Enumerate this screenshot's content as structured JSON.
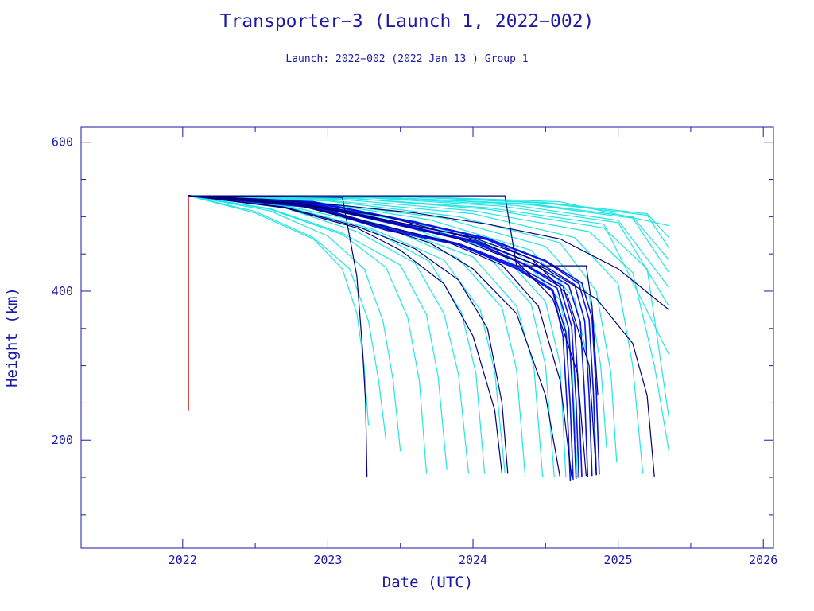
{
  "chart_data": {
    "type": "line",
    "title": "Transporter−3 (Launch 1, 2022−002)",
    "subtitle": "Launch: 2022−002  (2022 Jan 13 )  Group 1",
    "xlabel": "Date (UTC)",
    "ylabel": "Height (km)",
    "xlim": [
      2021.3,
      2026.07
    ],
    "ylim": [
      55,
      620
    ],
    "x_ticks": [
      2022,
      2023,
      2024,
      2025,
      2026
    ],
    "y_ticks": [
      200,
      400,
      600
    ],
    "grid": false,
    "colors": {
      "cyan": "#22e5e5",
      "blue": "#0a14e6",
      "navy": "#00007a",
      "red": "#d40000",
      "axis": "#1a1aa6"
    },
    "series": [
      {
        "color": "navy",
        "x": [
          2022.04,
          2024.22,
          2024.3,
          2024.78,
          2024.82,
          2024.86
        ],
        "y": [
          528,
          528,
          434,
          434,
          380,
          260
        ]
      },
      {
        "color": "navy",
        "x": [
          2022.04,
          2023.1,
          2023.2,
          2023.24,
          2023.26,
          2023.27
        ],
        "y": [
          528,
          526,
          420,
          320,
          250,
          150
        ]
      },
      {
        "color": "red",
        "x": [
          2022.04,
          2022.04
        ],
        "y": [
          240,
          528
        ]
      },
      {
        "color": "navy",
        "x": [
          2022.04,
          2022.6,
          2023.1,
          2023.6,
          2024.1,
          2024.6,
          2025.0,
          2025.35
        ],
        "y": [
          528,
          523,
          515,
          505,
          490,
          470,
          430,
          375
        ]
      },
      {
        "color": "navy",
        "x": [
          2022.04,
          2022.8,
          2023.4,
          2024.0,
          2024.5,
          2024.85,
          2025.1,
          2025.2,
          2025.25
        ],
        "y": [
          528,
          518,
          500,
          470,
          430,
          390,
          330,
          260,
          150
        ]
      },
      {
        "color": "navy",
        "x": [
          2022.04,
          2022.7,
          2023.2,
          2023.5,
          2023.8,
          2024.0,
          2024.15,
          2024.2
        ],
        "y": [
          528,
          512,
          485,
          455,
          410,
          340,
          240,
          155
        ]
      },
      {
        "color": "navy",
        "x": [
          2022.04,
          2022.7,
          2023.2,
          2023.6,
          2023.9,
          2024.1,
          2024.2,
          2024.24
        ],
        "y": [
          528,
          513,
          487,
          457,
          415,
          350,
          250,
          155
        ]
      },
      {
        "color": "navy",
        "x": [
          2022.04,
          2022.8,
          2023.3,
          2023.7,
          2024.0,
          2024.3,
          2024.5,
          2024.6
        ],
        "y": [
          528,
          515,
          490,
          465,
          430,
          370,
          260,
          150
        ]
      },
      {
        "color": "navy",
        "x": [
          2022.04,
          2022.8,
          2023.3,
          2023.8,
          2024.2,
          2024.45,
          2024.6,
          2024.68
        ],
        "y": [
          528,
          516,
          492,
          468,
          435,
          380,
          280,
          150
        ]
      },
      {
        "color": "navy",
        "x": [
          2022.04,
          2022.8,
          2023.4,
          2023.9,
          2024.3,
          2024.55,
          2024.72,
          2024.78
        ],
        "y": [
          528,
          517,
          494,
          470,
          440,
          390,
          290,
          152
        ]
      },
      {
        "color": "navy",
        "x": [
          2022.04,
          2022.8,
          2023.4,
          2024.0,
          2024.4,
          2024.65,
          2024.8,
          2024.85
        ],
        "y": [
          528,
          518,
          496,
          472,
          444,
          395,
          300,
          153
        ]
      },
      {
        "color": "blue",
        "x": [
          2022.04,
          2022.9,
          2023.4,
          2023.9,
          2024.3,
          2024.55,
          2024.62,
          2024.65,
          2024.67
        ],
        "y": [
          528,
          512,
          482,
          462,
          430,
          400,
          340,
          240,
          145
        ]
      },
      {
        "color": "blue",
        "x": [
          2022.04,
          2022.9,
          2023.4,
          2023.9,
          2024.3,
          2024.55,
          2024.64,
          2024.67,
          2024.69
        ],
        "y": [
          528,
          513,
          484,
          463,
          432,
          402,
          345,
          245,
          147
        ]
      },
      {
        "color": "blue",
        "x": [
          2022.04,
          2022.9,
          2023.4,
          2023.9,
          2024.3,
          2024.58,
          2024.66,
          2024.69,
          2024.71
        ],
        "y": [
          528,
          514,
          486,
          464,
          434,
          404,
          350,
          250,
          148
        ]
      },
      {
        "color": "blue",
        "x": [
          2022.04,
          2022.9,
          2023.5,
          2024.0,
          2024.35,
          2024.6,
          2024.68,
          2024.71,
          2024.73
        ],
        "y": [
          528,
          515,
          488,
          466,
          436,
          406,
          352,
          252,
          149
        ]
      },
      {
        "color": "blue",
        "x": [
          2022.04,
          2022.9,
          2023.5,
          2024.0,
          2024.35,
          2024.62,
          2024.7,
          2024.73,
          2024.75
        ],
        "y": [
          528,
          516,
          489,
          467,
          437,
          407,
          355,
          255,
          150
        ]
      },
      {
        "color": "blue",
        "x": [
          2022.04,
          2022.9,
          2023.5,
          2024.0,
          2024.4,
          2024.66,
          2024.74,
          2024.77,
          2024.79
        ],
        "y": [
          528,
          517,
          490,
          468,
          438,
          408,
          358,
          258,
          151
        ]
      },
      {
        "color": "blue",
        "x": [
          2022.04,
          2022.9,
          2023.5,
          2024.1,
          2024.45,
          2024.7,
          2024.77,
          2024.8,
          2024.82
        ],
        "y": [
          528,
          518,
          491,
          469,
          439,
          409,
          360,
          260,
          152
        ]
      },
      {
        "color": "blue",
        "x": [
          2022.04,
          2022.9,
          2023.6,
          2024.1,
          2024.5,
          2024.73,
          2024.8,
          2024.83,
          2024.85
        ],
        "y": [
          528,
          519,
          492,
          470,
          440,
          410,
          362,
          262,
          153
        ]
      },
      {
        "color": "blue",
        "x": [
          2022.04,
          2022.9,
          2023.6,
          2024.1,
          2024.5,
          2024.75,
          2024.82,
          2024.85,
          2024.87
        ],
        "y": [
          528,
          520,
          493,
          471,
          441,
          411,
          364,
          264,
          154
        ]
      },
      {
        "color": "cyan",
        "x": [
          2022.04,
          2022.5,
          2022.9,
          2023.1,
          2023.2,
          2023.25,
          2023.28
        ],
        "y": [
          528,
          505,
          470,
          430,
          370,
          300,
          220
        ]
      },
      {
        "color": "cyan",
        "x": [
          2022.04,
          2022.5,
          2022.9,
          2023.15,
          2023.28,
          2023.35,
          2023.4
        ],
        "y": [
          528,
          507,
          472,
          430,
          360,
          280,
          200
        ]
      },
      {
        "color": "cyan",
        "x": [
          2022.04,
          2022.6,
          2023.0,
          2023.25,
          2023.38,
          2023.45,
          2023.5
        ],
        "y": [
          528,
          508,
          474,
          430,
          360,
          280,
          185
        ]
      },
      {
        "color": "cyan",
        "x": [
          2022.04,
          2022.6,
          2023.1,
          2023.4,
          2023.55,
          2023.63,
          2023.68
        ],
        "y": [
          528,
          510,
          476,
          432,
          365,
          280,
          155
        ]
      },
      {
        "color": "cyan",
        "x": [
          2022.04,
          2022.6,
          2023.1,
          2023.5,
          2023.68,
          2023.76,
          2023.82
        ],
        "y": [
          528,
          511,
          478,
          435,
          368,
          285,
          160
        ]
      },
      {
        "color": "cyan",
        "x": [
          2022.04,
          2022.7,
          2023.2,
          2023.6,
          2023.8,
          2023.9,
          2023.97
        ],
        "y": [
          528,
          512,
          480,
          438,
          370,
          288,
          155
        ]
      },
      {
        "color": "cyan",
        "x": [
          2022.04,
          2022.7,
          2023.3,
          2023.7,
          2023.92,
          2024.02,
          2024.08
        ],
        "y": [
          528,
          513,
          482,
          440,
          372,
          290,
          155
        ]
      },
      {
        "color": "cyan",
        "x": [
          2022.04,
          2022.7,
          2023.3,
          2023.8,
          2024.05,
          2024.15,
          2024.22
        ],
        "y": [
          528,
          514,
          484,
          442,
          375,
          292,
          156
        ]
      },
      {
        "color": "cyan",
        "x": [
          2022.04,
          2022.7,
          2023.4,
          2023.9,
          2024.2,
          2024.3,
          2024.36
        ],
        "y": [
          528,
          515,
          486,
          444,
          378,
          295,
          150
        ]
      },
      {
        "color": "cyan",
        "x": [
          2022.04,
          2022.8,
          2023.4,
          2024.0,
          2024.3,
          2024.42,
          2024.48
        ],
        "y": [
          528,
          516,
          488,
          446,
          380,
          298,
          150
        ]
      },
      {
        "color": "cyan",
        "x": [
          2022.04,
          2022.8,
          2023.5,
          2024.1,
          2024.4,
          2024.5,
          2024.56
        ],
        "y": [
          528,
          517,
          490,
          448,
          383,
          300,
          150
        ]
      },
      {
        "color": "cyan",
        "x": [
          2022.04,
          2022.8,
          2023.6,
          2024.2,
          2024.5,
          2024.6,
          2024.64
        ],
        "y": [
          528,
          518,
          492,
          450,
          386,
          302,
          150
        ]
      },
      {
        "color": "cyan",
        "x": [
          2022.04,
          2022.8,
          2023.6,
          2024.3,
          2024.6,
          2024.68,
          2024.72
        ],
        "y": [
          528,
          519,
          494,
          452,
          388,
          305,
          150
        ]
      },
      {
        "color": "cyan",
        "x": [
          2022.04,
          2022.9,
          2023.7,
          2024.4,
          2024.7,
          2024.8,
          2024.85
        ],
        "y": [
          528,
          520,
          496,
          455,
          390,
          300,
          160
        ]
      },
      {
        "color": "cyan",
        "x": [
          2022.04,
          2022.9,
          2023.8,
          2024.5,
          2024.8,
          2024.88,
          2024.92
        ],
        "y": [
          528,
          520,
          498,
          460,
          395,
          300,
          190
        ]
      },
      {
        "color": "cyan",
        "x": [
          2022.04,
          2023.0,
          2023.9,
          2024.6,
          2024.85,
          2024.95,
          2024.99
        ],
        "y": [
          528,
          521,
          500,
          465,
          400,
          290,
          170
        ]
      },
      {
        "color": "cyan",
        "x": [
          2022.04,
          2023.0,
          2024.0,
          2024.7,
          2025.0,
          2025.1,
          2025.17
        ],
        "y": [
          528,
          522,
          504,
          472,
          410,
          300,
          155
        ]
      },
      {
        "color": "cyan",
        "x": [
          2022.04,
          2023.1,
          2024.0,
          2024.8,
          2025.1,
          2025.25,
          2025.35
        ],
        "y": [
          528,
          523,
          508,
          480,
          425,
          300,
          185
        ]
      },
      {
        "color": "cyan",
        "x": [
          2022.04,
          2023.2,
          2024.1,
          2024.9,
          2025.2,
          2025.35
        ],
        "y": [
          528,
          524,
          510,
          485,
          430,
          230
        ]
      },
      {
        "color": "cyan",
        "x": [
          2022.04,
          2023.2,
          2024.1,
          2024.9,
          2025.35
        ],
        "y": [
          528,
          524,
          512,
          490,
          315
        ]
      },
      {
        "color": "cyan",
        "x": [
          2022.04,
          2023.3,
          2024.2,
          2025.0,
          2025.35
        ],
        "y": [
          528,
          525,
          514,
          492,
          380
        ]
      },
      {
        "color": "cyan",
        "x": [
          2022.04,
          2023.3,
          2024.3,
          2025.0,
          2025.35
        ],
        "y": [
          528,
          526,
          515,
          495,
          405
        ]
      },
      {
        "color": "cyan",
        "x": [
          2022.04,
          2023.4,
          2024.4,
          2025.1,
          2025.35
        ],
        "y": [
          528,
          526,
          516,
          498,
          425
        ]
      },
      {
        "color": "cyan",
        "x": [
          2022.04,
          2023.4,
          2024.4,
          2025.1,
          2025.35
        ],
        "y": [
          528,
          526,
          517,
          500,
          442
        ]
      },
      {
        "color": "cyan",
        "x": [
          2022.04,
          2023.5,
          2024.5,
          2025.2,
          2025.35
        ],
        "y": [
          528,
          527,
          518,
          502,
          458
        ]
      },
      {
        "color": "cyan",
        "x": [
          2022.04,
          2023.5,
          2024.5,
          2025.2,
          2025.35
        ],
        "y": [
          528,
          527,
          519,
          504,
          472
        ]
      },
      {
        "color": "cyan",
        "x": [
          2022.04,
          2023.6,
          2024.6,
          2025.35
        ],
        "y": [
          528,
          527,
          520,
          488
        ]
      }
    ]
  }
}
